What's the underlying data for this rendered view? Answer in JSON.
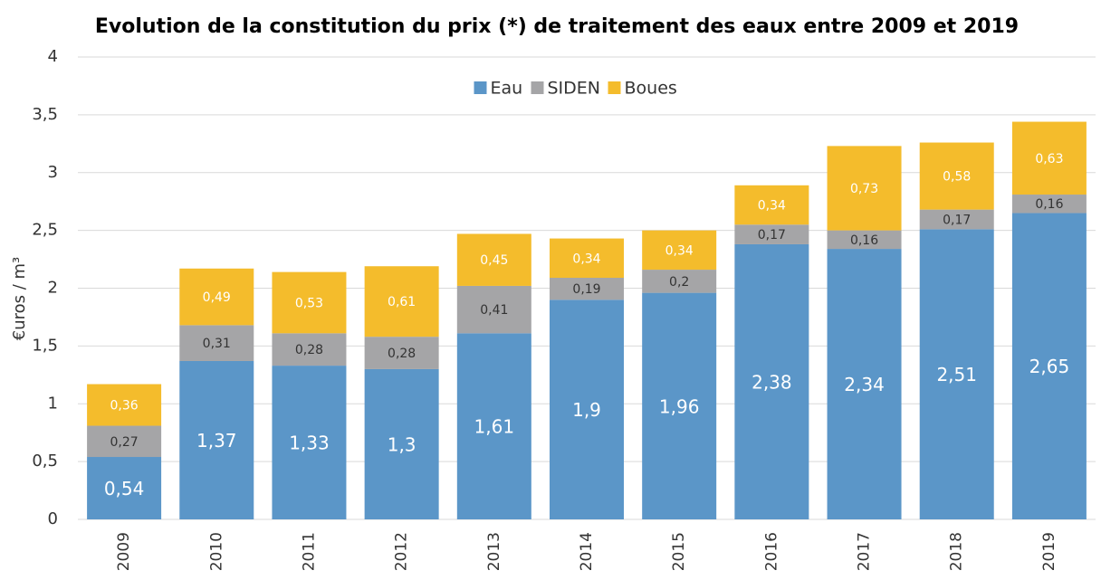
{
  "chart_data": {
    "type": "stacked_bar",
    "title": "Evolution de la constitution du prix (*) de traitement des eaux entre 2009 et 2019",
    "y_label": "€uros / m³",
    "categories": [
      "2009",
      "2010",
      "2011",
      "2012",
      "2013",
      "2014",
      "2015",
      "2016",
      "2017",
      "2018",
      "2019"
    ],
    "series": [
      {
        "name": "Eau",
        "color": "#5b96c8",
        "values": [
          0.54,
          1.37,
          1.33,
          1.3,
          1.61,
          1.9,
          1.96,
          2.38,
          2.34,
          2.51,
          2.65
        ],
        "value_labels": [
          "0,54",
          "1,37",
          "1,33",
          "1,3",
          "1,61",
          "1,9",
          "1,96",
          "2,38",
          "2,34",
          "2,51",
          "2,65"
        ]
      },
      {
        "name": "SIDEN",
        "color": "#a5a5a7",
        "values": [
          0.27,
          0.31,
          0.28,
          0.28,
          0.41,
          0.19,
          0.2,
          0.17,
          0.16,
          0.17,
          0.16
        ],
        "value_labels": [
          "0,27",
          "0,31",
          "0,28",
          "0,28",
          "0,41",
          "0,19",
          "0,2",
          "0,17",
          "0,16",
          "0,17",
          "0,16"
        ]
      },
      {
        "name": "Boues",
        "color": "#f4bc2c",
        "values": [
          0.36,
          0.49,
          0.53,
          0.61,
          0.45,
          0.34,
          0.34,
          0.34,
          0.73,
          0.58,
          0.63
        ],
        "value_labels": [
          "0,36",
          "0,49",
          "0,53",
          "0,61",
          "0,45",
          "0,34",
          "0,34",
          "0,34",
          "0,73",
          "0,58",
          "0,63"
        ]
      }
    ],
    "ylim": [
      0,
      4
    ],
    "yticks": [
      0,
      {
        "value": 0.5,
        "label": "0,5"
      },
      1,
      {
        "value": 1.5,
        "label": "1,5"
      },
      2,
      {
        "value": 2.5,
        "label": "2,5"
      },
      3,
      {
        "value": 3.5,
        "label": "3,5"
      },
      4
    ],
    "grid": true,
    "legend": "top"
  }
}
